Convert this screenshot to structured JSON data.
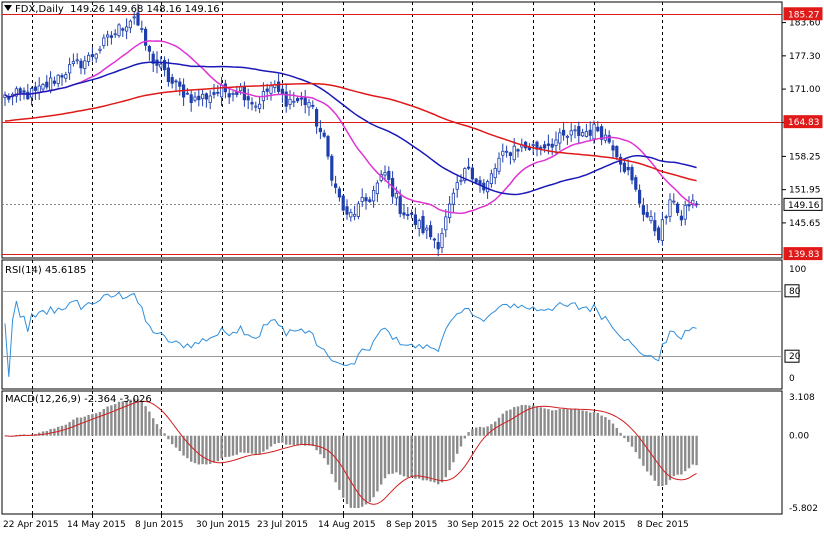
{
  "main_header": {
    "symbol": "FDX,Daily",
    "ohlc": "149.26 149.68 148.16 149.16"
  },
  "rsi_header": "RSI(14) 45.6185",
  "macd_header": "MACD(12,26,9) -2.364 -3.026",
  "colors": {
    "candle": "#1f3fae",
    "ma_fast": "#e033d3",
    "ma_mid": "#1a1ab8",
    "ma_slow": "#e01919",
    "level": "#e01919",
    "rsi": "#2f8fdc",
    "hist": "#8c8c8c",
    "signal": "#d21e1e",
    "grid": "#000000"
  },
  "chart_data": [
    {
      "type": "candlestick",
      "name": "price",
      "ylim": [
        139.0,
        187.5
      ],
      "y_ticks": [
        "183.60",
        "177.30",
        "171.00",
        "164.65",
        "158.25",
        "151.95",
        "145.65"
      ],
      "price_labels": [
        {
          "value": 185.27,
          "text": "185.27",
          "style": "red"
        },
        {
          "value": 164.83,
          "text": "164.83",
          "style": "red"
        },
        {
          "value": 149.16,
          "text": "149.16",
          "style": "current"
        },
        {
          "value": 139.83,
          "text": "139.83",
          "style": "red"
        }
      ],
      "horizontal_levels": [
        185.27,
        164.83,
        139.83
      ],
      "dates": [
        "22 Apr 2015",
        "14 May 2015",
        "8 Jun 2015",
        "30 Jun 2015",
        "23 Jul 2015",
        "14 Aug 2015",
        "8 Sep 2015",
        "30 Sep 2015",
        "22 Oct 2015",
        "13 Nov 2015",
        "8 Dec 2015"
      ],
      "date_bar_index": [
        0,
        16,
        34,
        50,
        66,
        82,
        100,
        116,
        132,
        148,
        166
      ],
      "bars": 183,
      "close_anchors": [
        [
          0,
          169.5
        ],
        [
          8,
          170.2
        ],
        [
          16,
          174.5
        ],
        [
          22,
          176.8
        ],
        [
          28,
          181.0
        ],
        [
          34,
          185.0
        ],
        [
          38,
          177.5
        ],
        [
          44,
          172.0
        ],
        [
          50,
          169.0
        ],
        [
          56,
          170.5
        ],
        [
          62,
          171.0
        ],
        [
          66,
          168.0
        ],
        [
          70,
          171.5
        ],
        [
          74,
          169.0
        ],
        [
          80,
          168.5
        ],
        [
          84,
          161.0
        ],
        [
          87,
          152.0
        ],
        [
          90,
          146.5
        ],
        [
          96,
          150.5
        ],
        [
          100,
          155.0
        ],
        [
          104,
          148.5
        ],
        [
          110,
          144.5
        ],
        [
          114,
          142.0
        ],
        [
          118,
          150.5
        ],
        [
          122,
          156.5
        ],
        [
          126,
          151.5
        ],
        [
          130,
          157.5
        ],
        [
          134,
          160.0
        ],
        [
          140,
          160.0
        ],
        [
          146,
          161.5
        ],
        [
          150,
          162.5
        ],
        [
          156,
          163.5
        ],
        [
          160,
          160.5
        ],
        [
          164,
          155.0
        ],
        [
          168,
          148.0
        ],
        [
          172,
          143.5
        ],
        [
          176,
          150.5
        ],
        [
          178,
          146.0
        ],
        [
          180,
          149.5
        ],
        [
          182,
          149.16
        ]
      ],
      "moving_averages": [
        {
          "period": 20,
          "color_key": "ma_fast"
        },
        {
          "period": 50,
          "color_key": "ma_mid"
        },
        {
          "period": 100,
          "color_key": "ma_slow"
        }
      ]
    },
    {
      "type": "line",
      "name": "RSI(14)",
      "ylim": [
        0,
        100
      ],
      "y_ticks": [
        "100",
        "80",
        "20",
        "0"
      ],
      "levels": [
        80,
        20
      ],
      "last_value": 45.6185
    },
    {
      "type": "bar",
      "name": "MACD(12,26,9)",
      "y_ticks": [
        "3.108",
        "0.00",
        "-5.802"
      ],
      "ylim": [
        -5.802,
        3.108
      ],
      "macd_last": -2.364,
      "signal_last": -3.026
    }
  ]
}
